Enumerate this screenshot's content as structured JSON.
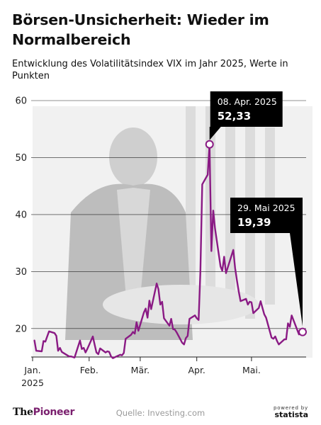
{
  "header": {
    "title": "Börsen-Unsicherheit: Wieder im Normalbereich",
    "subtitle": "Entwicklung des Volatilitätsindex VIX im Jahr 2025, Werte in Punkten"
  },
  "colors": {
    "line": "#8a1a84",
    "grid": "#222222",
    "callout_bg": "#000000",
    "callout_text": "#ffffff"
  },
  "chart_data": {
    "type": "line",
    "y_range": [
      15,
      60
    ],
    "y_ticks": [
      20,
      30,
      40,
      50,
      60
    ],
    "x_domain": [
      "2025-01-01",
      "2025-05-29"
    ],
    "x_ticks": [
      {
        "date": "2025-01-01",
        "label": "Jan.",
        "sublabel": "2025"
      },
      {
        "date": "2025-02-01",
        "label": "Feb.",
        "sublabel": ""
      },
      {
        "date": "2025-03-01",
        "label": "Mär.",
        "sublabel": ""
      },
      {
        "date": "2025-04-01",
        "label": "Apr.",
        "sublabel": ""
      },
      {
        "date": "2025-05-01",
        "label": "Mai.",
        "sublabel": ""
      }
    ],
    "grid": true,
    "series": [
      {
        "points": [
          [
            "2025-01-02",
            17.9
          ],
          [
            "2025-01-03",
            16.1
          ],
          [
            "2025-01-06",
            16.0
          ],
          [
            "2025-01-07",
            17.8
          ],
          [
            "2025-01-08",
            17.7
          ],
          [
            "2025-01-10",
            19.5
          ],
          [
            "2025-01-13",
            19.2
          ],
          [
            "2025-01-14",
            18.7
          ],
          [
            "2025-01-15",
            16.1
          ],
          [
            "2025-01-16",
            16.6
          ],
          [
            "2025-01-17",
            15.9
          ],
          [
            "2025-01-21",
            15.1
          ],
          [
            "2025-01-22",
            15.1
          ],
          [
            "2025-01-23",
            15.0
          ],
          [
            "2025-01-24",
            14.9
          ],
          [
            "2025-01-27",
            17.9
          ],
          [
            "2025-01-28",
            16.4
          ],
          [
            "2025-01-29",
            16.6
          ],
          [
            "2025-01-30",
            15.8
          ],
          [
            "2025-01-31",
            16.4
          ],
          [
            "2025-02-03",
            18.6
          ],
          [
            "2025-02-04",
            17.2
          ],
          [
            "2025-02-05",
            15.8
          ],
          [
            "2025-02-06",
            15.5
          ],
          [
            "2025-02-07",
            16.5
          ],
          [
            "2025-02-10",
            15.8
          ],
          [
            "2025-02-11",
            16.0
          ],
          [
            "2025-02-12",
            15.9
          ],
          [
            "2025-02-13",
            15.1
          ],
          [
            "2025-02-14",
            14.8
          ],
          [
            "2025-02-18",
            15.4
          ],
          [
            "2025-02-19",
            15.3
          ],
          [
            "2025-02-20",
            15.7
          ],
          [
            "2025-02-21",
            18.2
          ],
          [
            "2025-02-24",
            18.9
          ],
          [
            "2025-02-25",
            19.4
          ],
          [
            "2025-02-26",
            19.1
          ],
          [
            "2025-02-27",
            21.1
          ],
          [
            "2025-02-28",
            19.6
          ],
          [
            "2025-03-03",
            22.8
          ],
          [
            "2025-03-04",
            23.5
          ],
          [
            "2025-03-05",
            21.9
          ],
          [
            "2025-03-06",
            24.9
          ],
          [
            "2025-03-07",
            23.4
          ],
          [
            "2025-03-10",
            27.9
          ],
          [
            "2025-03-11",
            26.9
          ],
          [
            "2025-03-12",
            24.2
          ],
          [
            "2025-03-13",
            24.7
          ],
          [
            "2025-03-14",
            21.8
          ],
          [
            "2025-03-17",
            20.5
          ],
          [
            "2025-03-18",
            21.7
          ],
          [
            "2025-03-19",
            19.9
          ],
          [
            "2025-03-20",
            19.8
          ],
          [
            "2025-03-21",
            19.3
          ],
          [
            "2025-03-24",
            17.5
          ],
          [
            "2025-03-25",
            17.2
          ],
          [
            "2025-03-26",
            18.3
          ],
          [
            "2025-03-27",
            18.7
          ],
          [
            "2025-03-28",
            21.7
          ],
          [
            "2025-03-31",
            22.3
          ],
          [
            "2025-04-01",
            21.8
          ],
          [
            "2025-04-02",
            21.5
          ],
          [
            "2025-04-03",
            30.0
          ],
          [
            "2025-04-04",
            45.3
          ],
          [
            "2025-04-07",
            46.98
          ],
          [
            "2025-04-08",
            52.33
          ],
          [
            "2025-04-09",
            33.6
          ],
          [
            "2025-04-10",
            40.7
          ],
          [
            "2025-04-11",
            37.6
          ],
          [
            "2025-04-14",
            30.9
          ],
          [
            "2025-04-15",
            30.1
          ],
          [
            "2025-04-16",
            32.6
          ],
          [
            "2025-04-17",
            29.7
          ],
          [
            "2025-04-21",
            33.8
          ],
          [
            "2025-04-22",
            30.6
          ],
          [
            "2025-04-23",
            28.5
          ],
          [
            "2025-04-24",
            26.5
          ],
          [
            "2025-04-25",
            24.8
          ],
          [
            "2025-04-28",
            25.2
          ],
          [
            "2025-04-29",
            24.2
          ],
          [
            "2025-04-30",
            24.7
          ],
          [
            "2025-05-01",
            24.6
          ],
          [
            "2025-05-02",
            22.7
          ],
          [
            "2025-05-05",
            23.6
          ],
          [
            "2025-05-06",
            24.8
          ],
          [
            "2025-05-07",
            23.6
          ],
          [
            "2025-05-08",
            22.5
          ],
          [
            "2025-05-09",
            21.9
          ],
          [
            "2025-05-12",
            18.4
          ],
          [
            "2025-05-13",
            18.2
          ],
          [
            "2025-05-14",
            18.6
          ],
          [
            "2025-05-15",
            17.8
          ],
          [
            "2025-05-16",
            17.2
          ],
          [
            "2025-05-19",
            18.1
          ],
          [
            "2025-05-20",
            18.1
          ],
          [
            "2025-05-21",
            20.9
          ],
          [
            "2025-05-22",
            20.3
          ],
          [
            "2025-05-23",
            22.3
          ],
          [
            "2025-05-27",
            18.96
          ],
          [
            "2025-05-28",
            19.3
          ],
          [
            "2025-05-29",
            19.39
          ]
        ]
      }
    ],
    "annotations": [
      {
        "date": "2025-04-08",
        "value": 52.33,
        "label": "08. Apr. 2025",
        "value_label": "52,33"
      },
      {
        "date": "2025-05-29",
        "value": 19.39,
        "label": "29. Mai 2025",
        "value_label": "19,39"
      }
    ]
  },
  "footer": {
    "brand_prefix": "The",
    "brand_name": "Pioneer",
    "source": "Quelle: Investing.com",
    "powered_by": "powered by",
    "statista": "statista"
  }
}
